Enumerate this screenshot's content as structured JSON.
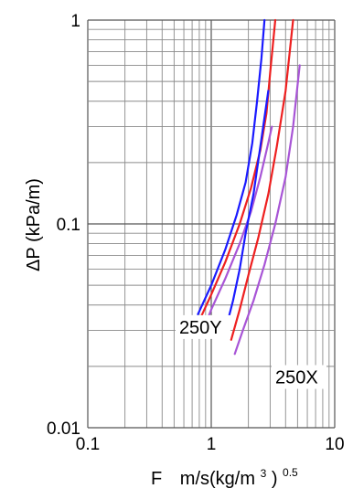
{
  "chart_data": {
    "type": "line",
    "title": "",
    "xlabel": "F",
    "xlabel_units": "m/s(kg/m",
    "xlabel_units_sup1": "3",
    "xlabel_units_close": ")",
    "xlabel_units_sup2": "0.5",
    "ylabel": "ΔP  (kPa/m)",
    "x_scale": "log",
    "y_scale": "log",
    "xlim": [
      0.1,
      10
    ],
    "ylim": [
      0.01,
      1
    ],
    "grid": true,
    "x_ticks": [
      {
        "value": 0.1,
        "label": "0.1"
      },
      {
        "value": 1,
        "label": "1"
      },
      {
        "value": 10,
        "label": "10"
      }
    ],
    "y_ticks": [
      {
        "value": 0.01,
        "label": "0.01"
      },
      {
        "value": 0.1,
        "label": "0.1"
      },
      {
        "value": 1,
        "label": "1"
      }
    ],
    "series": [
      {
        "color": "#1a1aff",
        "x": [
          0.78,
          1.0,
          1.3,
          1.6,
          1.9,
          2.15,
          2.35,
          2.55,
          2.7
        ],
        "y": [
          0.036,
          0.05,
          0.075,
          0.11,
          0.16,
          0.25,
          0.4,
          0.65,
          1.0
        ]
      },
      {
        "color": "#ee2020",
        "x": [
          0.79,
          1.0,
          1.3,
          1.7,
          2.1,
          2.5,
          2.8,
          3.0,
          3.3
        ],
        "y": [
          0.033,
          0.045,
          0.065,
          0.1,
          0.15,
          0.23,
          0.35,
          0.55,
          1.0
        ]
      },
      {
        "color": "#a855d6",
        "x": [
          0.82,
          1.0,
          1.3,
          1.7,
          2.1,
          2.5,
          2.9,
          3.1
        ],
        "y": [
          0.028,
          0.038,
          0.054,
          0.08,
          0.115,
          0.17,
          0.25,
          0.3
        ]
      },
      {
        "color": "#1a1aff",
        "x": [
          1.3,
          1.5,
          1.7,
          1.9,
          2.2,
          2.5,
          2.9
        ],
        "y": [
          0.03,
          0.042,
          0.06,
          0.09,
          0.14,
          0.24,
          0.45
        ]
      },
      {
        "color": "#ee2020",
        "x": [
          1.45,
          1.7,
          2.0,
          2.4,
          2.9,
          3.4,
          4.0,
          4.6
        ],
        "y": [
          0.027,
          0.038,
          0.056,
          0.085,
          0.14,
          0.24,
          0.45,
          1.0
        ]
      },
      {
        "color": "#a855d6",
        "x": [
          1.55,
          1.8,
          2.2,
          2.7,
          3.3,
          4.0,
          4.6,
          5.2
        ],
        "y": [
          0.023,
          0.03,
          0.042,
          0.063,
          0.1,
          0.17,
          0.3,
          0.6
        ]
      }
    ],
    "annotations": [
      {
        "text": "250Y",
        "x": 0.55,
        "y": 0.029
      },
      {
        "text": "250X",
        "x": 3.3,
        "y": 0.0165
      }
    ]
  }
}
